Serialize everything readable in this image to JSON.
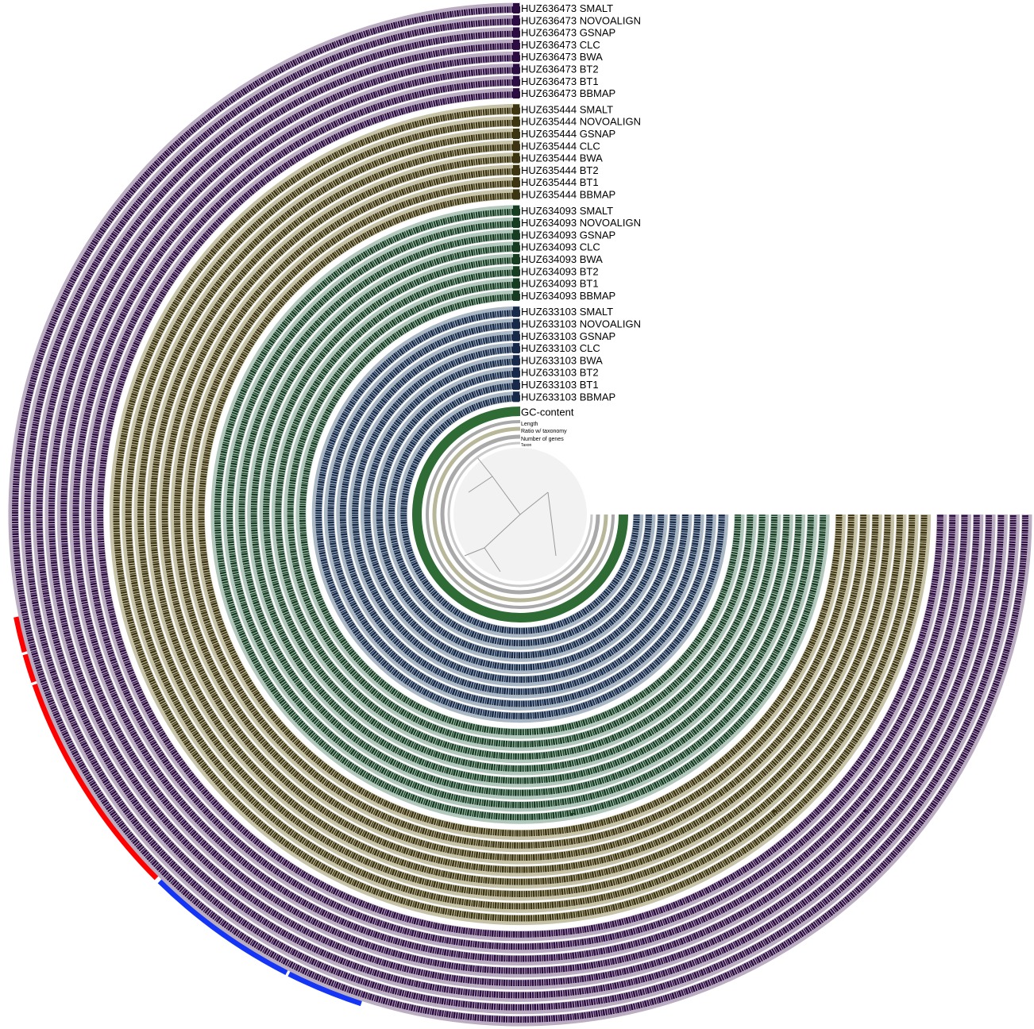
{
  "layers": [
    {
      "group": "HUZ636473",
      "color": "#2c0d42",
      "background": "#bcaec2",
      "items": [
        "HUZ636473 SMALT",
        "HUZ636473 NOVOALIGN",
        "HUZ636473 GSNAP",
        "HUZ636473 CLC",
        "HUZ636473 BWA",
        "HUZ636473 BT2",
        "HUZ636473 BT1",
        "HUZ636473 BBMAP"
      ]
    },
    {
      "group": "HUZ635444",
      "color": "#3d3512",
      "background": "#c7c3a9",
      "items": [
        "HUZ635444 SMALT",
        "HUZ635444 NOVOALIGN",
        "HUZ635444 GSNAP",
        "HUZ635444 CLC",
        "HUZ635444 BWA",
        "HUZ635444 BT2",
        "HUZ635444 BT1",
        "HUZ635444 BBMAP"
      ]
    },
    {
      "group": "HUZ634093",
      "color": "#163d22",
      "background": "#b3c8bd",
      "items": [
        "HUZ634093 SMALT",
        "HUZ634093 NOVOALIGN",
        "HUZ634093 GSNAP",
        "HUZ634093 CLC",
        "HUZ634093 BWA",
        "HUZ634093 BT2",
        "HUZ634093 BT1",
        "HUZ634093 BBMAP"
      ]
    },
    {
      "group": "HUZ633103",
      "color": "#172a4a",
      "background": "#aab7c4",
      "items": [
        "HUZ633103 SMALT",
        "HUZ633103 NOVOALIGN",
        "HUZ633103 GSNAP",
        "HUZ633103 CLC",
        "HUZ633103 BWA",
        "HUZ633103 BT2",
        "HUZ633103 BT1",
        "HUZ633103 BBMAP"
      ]
    }
  ],
  "extra_layers": [
    {
      "label": "GC-content",
      "color": "#2f6b35"
    },
    {
      "label": "Length",
      "color": "#a9a9a9"
    },
    {
      "label": "Ratio w/ taxonomy",
      "color": "#b9b79a"
    },
    {
      "label": "Number of genes",
      "color": "#a9a9a9"
    },
    {
      "label": "Taxon",
      "color": "#c8c8c8"
    }
  ]
}
